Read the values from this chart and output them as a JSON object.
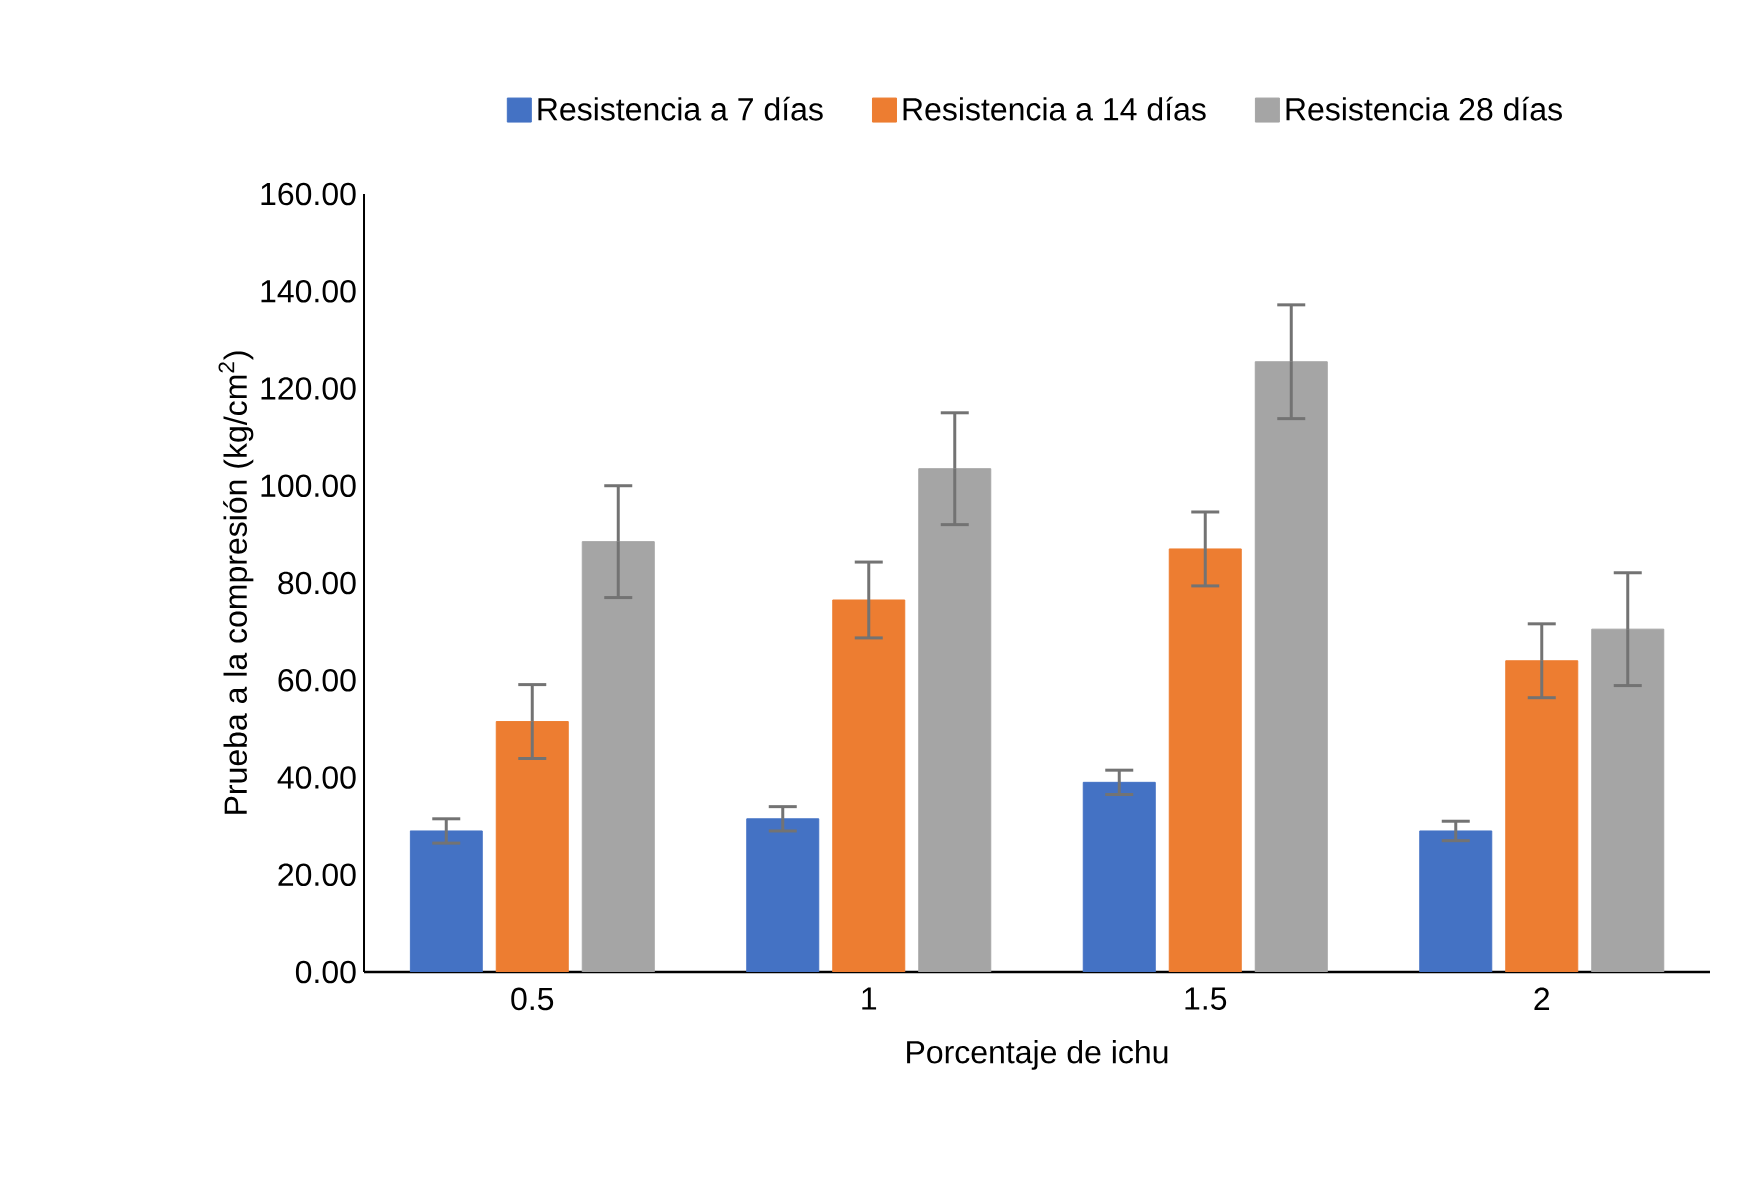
{
  "chart_data": {
    "type": "bar",
    "xlabel": "Porcentaje de ichu",
    "ylabel": "Prueba a la compresión (kg/cm$^{2}$)",
    "categories": [
      "0.5",
      "1",
      "1.5",
      "2"
    ],
    "series": [
      {
        "name": "Resistencia a 7 días",
        "color": "#4472c4",
        "values": [
          29,
          31.5,
          39,
          29
        ],
        "errors": [
          2.5,
          2.5,
          2.5,
          2
        ]
      },
      {
        "name": "Resistencia a 14 días",
        "color": "#ed7d31",
        "values": [
          51.5,
          76.5,
          87,
          64
        ],
        "errors": [
          7.6,
          7.8,
          7.6,
          7.6
        ]
      },
      {
        "name": "Resistencia 28 días",
        "color": "#a5a5a5",
        "values": [
          88.5,
          103.5,
          125.5,
          70.5
        ],
        "errors": [
          11.5,
          11.5,
          11.7,
          11.6
        ]
      }
    ],
    "ylim": [
      0,
      160
    ],
    "yticks": [
      {
        "value": 0,
        "label": "0.00"
      },
      {
        "value": 20,
        "label": "20.00"
      },
      {
        "value": 40,
        "label": "40.00"
      },
      {
        "value": 60,
        "label": "60.00"
      },
      {
        "value": 80,
        "label": "80.00"
      },
      {
        "value": 100,
        "label": "100.00"
      },
      {
        "value": 120,
        "label": "120.00"
      },
      {
        "value": 140,
        "label": "140.00"
      },
      {
        "value": 160,
        "label": "160.00"
      }
    ],
    "grid": false,
    "legend": "top"
  }
}
